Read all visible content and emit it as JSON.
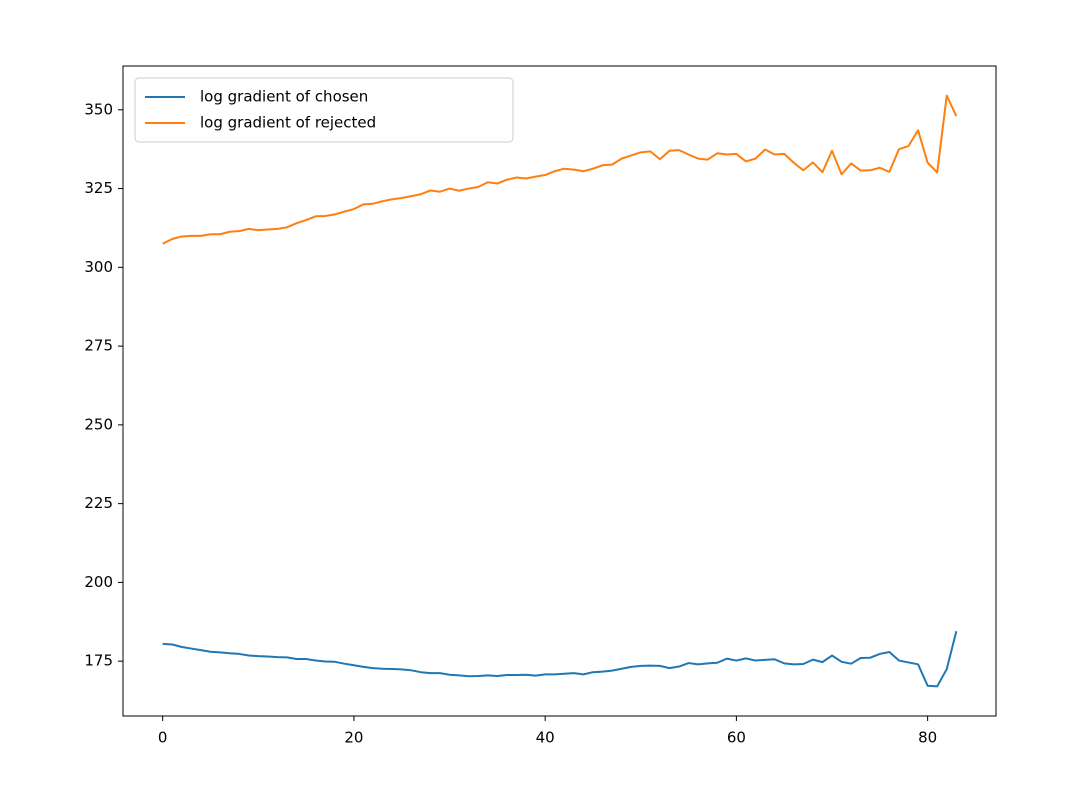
{
  "chart_data": {
    "type": "line",
    "x": [
      0,
      1,
      2,
      3,
      4,
      5,
      6,
      7,
      8,
      9,
      10,
      11,
      12,
      13,
      14,
      15,
      16,
      17,
      18,
      19,
      20,
      21,
      22,
      23,
      24,
      25,
      26,
      27,
      28,
      29,
      30,
      31,
      32,
      33,
      34,
      35,
      36,
      37,
      38,
      39,
      40,
      41,
      42,
      43,
      44,
      45,
      46,
      47,
      48,
      49,
      50,
      51,
      52,
      53,
      54,
      55,
      56,
      57,
      58,
      59,
      60,
      61,
      62,
      63,
      64,
      65,
      66,
      67,
      68,
      69,
      70,
      71,
      72,
      73,
      74,
      75,
      76,
      77,
      78,
      79,
      80,
      81,
      82,
      83
    ],
    "series": [
      {
        "name": "log gradient of chosen",
        "color": "#1f77b4",
        "values": [
          180.5,
          180.3,
          179.5,
          179,
          178.5,
          178,
          177.8,
          177.5,
          177.3,
          176.8,
          176.6,
          176.5,
          176.3,
          176.2,
          175.7,
          175.7,
          175.2,
          174.9,
          174.8,
          174.2,
          173.7,
          173.2,
          172.8,
          172.6,
          172.5,
          172.4,
          172.1,
          171.5,
          171.2,
          171.2,
          170.7,
          170.5,
          170.2,
          170.3,
          170.5,
          170.3,
          170.6,
          170.6,
          170.7,
          170.4,
          170.8,
          170.8,
          171,
          171.2,
          170.8,
          171.5,
          171.7,
          172,
          172.6,
          173.2,
          173.5,
          173.6,
          173.5,
          172.8,
          173.3,
          174.4,
          174,
          174.3,
          174.5,
          175.8,
          175.2,
          175.9,
          175.2,
          175.4,
          175.6,
          174.3,
          174,
          174.1,
          175.5,
          174.7,
          176.8,
          174.8,
          174.2,
          176,
          176.1,
          177.3,
          177.9,
          175.2,
          174.6,
          174,
          167.2,
          167,
          172.5,
          184.5
        ]
      },
      {
        "name": "log gradient of rejected",
        "color": "#ff7f0e",
        "values": [
          307.5,
          309,
          309.8,
          310,
          310,
          310.5,
          310.5,
          311.3,
          311.5,
          312.2,
          311.8,
          312,
          312.2,
          312.7,
          314,
          315,
          316.2,
          316.3,
          316.8,
          317.7,
          318.5,
          320,
          320.2,
          321,
          321.6,
          322,
          322.6,
          323.2,
          324.4,
          324,
          325,
          324.3,
          325,
          325.5,
          327,
          326.6,
          327.8,
          328.5,
          328.2,
          328.8,
          329.3,
          330.5,
          331.3,
          331,
          330.5,
          331.3,
          332.4,
          332.6,
          334.5,
          335.5,
          336.5,
          336.8,
          334.3,
          337,
          337.2,
          335.8,
          334.5,
          334.2,
          336.2,
          335.8,
          336,
          333.6,
          334.5,
          337.4,
          335.8,
          336,
          333.2,
          330.8,
          333.3,
          330.2,
          337,
          329.5,
          333,
          330.7,
          330.8,
          331.6,
          330.3,
          337.5,
          338.5,
          343.5,
          333.2,
          330.1,
          354.5,
          348
        ]
      }
    ],
    "xlim": [
      -4.15,
      87.15
    ],
    "xticks": [
      0,
      20,
      40,
      60,
      80
    ],
    "ylim": [
      157.6,
      363.9
    ],
    "yticks": [
      175,
      200,
      225,
      250,
      275,
      300,
      325,
      350
    ],
    "grid": false,
    "legend": "upper left"
  }
}
